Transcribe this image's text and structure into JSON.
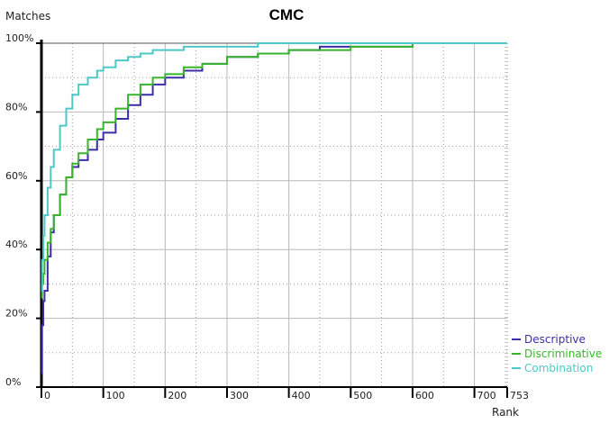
{
  "chart_data": {
    "type": "line",
    "title": "CMC",
    "xlabel": "Rank",
    "ylabel": "Matches",
    "xlim": [
      0,
      753
    ],
    "ylim": [
      0,
      100
    ],
    "x_ticks": [
      0,
      100,
      200,
      300,
      400,
      500,
      600,
      700,
      753
    ],
    "y_ticks": [
      0,
      20,
      40,
      60,
      80,
      100
    ],
    "y_tick_labels": [
      "0%",
      "20%",
      "40%",
      "60%",
      "80%",
      "100%"
    ],
    "grid": true,
    "legend_position": "bottom-right",
    "series": [
      {
        "name": "Descriptive",
        "color": "#3a2fa8",
        "x": [
          0,
          1,
          3,
          5,
          10,
          15,
          20,
          30,
          40,
          50,
          60,
          75,
          90,
          100,
          120,
          140,
          160,
          180,
          200,
          230,
          260,
          300,
          350,
          400,
          450,
          500,
          600,
          753
        ],
        "y": [
          4,
          18,
          25,
          28,
          38,
          45,
          50,
          56,
          61,
          64,
          66,
          69,
          72,
          74,
          78,
          82,
          85,
          88,
          90,
          92,
          94,
          96,
          97,
          98,
          99,
          99,
          100,
          100
        ]
      },
      {
        "name": "Discriminative",
        "color": "#38b52c",
        "x": [
          0,
          1,
          3,
          5,
          10,
          15,
          20,
          30,
          40,
          50,
          60,
          75,
          90,
          100,
          120,
          140,
          160,
          180,
          200,
          230,
          260,
          300,
          350,
          400,
          450,
          500,
          600,
          753
        ],
        "y": [
          26,
          30,
          33,
          37,
          42,
          46,
          50,
          56,
          61,
          65,
          68,
          72,
          75,
          77,
          81,
          85,
          88,
          90,
          91,
          93,
          94,
          96,
          97,
          98,
          98,
          99,
          100,
          100
        ]
      },
      {
        "name": "Combination",
        "color": "#4cc9c6",
        "x": [
          0,
          1,
          3,
          5,
          10,
          15,
          20,
          30,
          40,
          50,
          60,
          75,
          90,
          100,
          120,
          140,
          160,
          180,
          200,
          230,
          260,
          300,
          350,
          400,
          753
        ],
        "y": [
          28,
          37,
          44,
          50,
          58,
          64,
          69,
          76,
          81,
          85,
          88,
          90,
          92,
          93,
          95,
          96,
          97,
          98,
          98,
          99,
          99,
          99,
          100,
          100,
          100
        ]
      }
    ]
  }
}
